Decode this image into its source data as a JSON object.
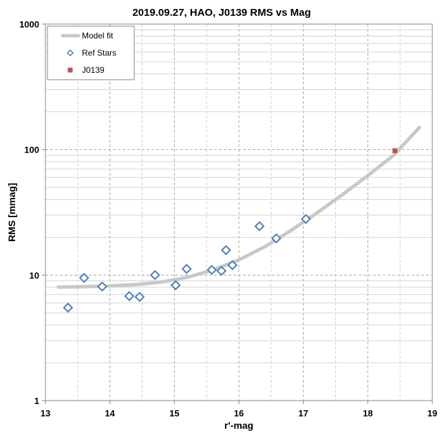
{
  "chart_data": {
    "type": "scatter",
    "title": "2019.09.27, HAO, J0139 RMS vs Mag",
    "xlabel": "r'-mag",
    "ylabel": "RMS [mmag]",
    "xlim": [
      13,
      19
    ],
    "ylim": [
      1,
      1000
    ],
    "yscale": "log",
    "grid": true,
    "legend_position": "top-left",
    "x_ticks": [
      13,
      14,
      15,
      16,
      17,
      18,
      19
    ],
    "y_ticks": [
      1,
      10,
      100,
      1000
    ],
    "x_tick_labels": [
      "13",
      "14",
      "15",
      "16",
      "17",
      "18",
      "19"
    ],
    "y_tick_labels": [
      "1",
      "10",
      "100",
      "1000"
    ],
    "series": [
      {
        "name": "Model fit",
        "kind": "line",
        "color": "#c8c8c8",
        "points": [
          [
            13.2,
            8.0
          ],
          [
            13.6,
            8.1
          ],
          [
            14.0,
            8.2
          ],
          [
            14.4,
            8.4
          ],
          [
            14.8,
            8.8
          ],
          [
            15.2,
            9.6
          ],
          [
            15.6,
            11.0
          ],
          [
            16.0,
            13.2
          ],
          [
            16.4,
            16.8
          ],
          [
            16.8,
            22.5
          ],
          [
            17.2,
            31.0
          ],
          [
            17.6,
            43.5
          ],
          [
            18.0,
            62.0
          ],
          [
            18.4,
            90.0
          ],
          [
            18.8,
            150.0
          ]
        ]
      },
      {
        "name": "Ref Stars",
        "kind": "marker",
        "marker": "diamond",
        "color": "#4a7ebb",
        "points": [
          [
            13.35,
            5.5
          ],
          [
            13.6,
            9.5
          ],
          [
            13.88,
            8.1
          ],
          [
            14.3,
            6.8
          ],
          [
            14.46,
            6.7
          ],
          [
            14.7,
            10.0
          ],
          [
            15.02,
            8.3
          ],
          [
            15.19,
            11.2
          ],
          [
            15.58,
            11.0
          ],
          [
            15.73,
            10.8
          ],
          [
            15.8,
            15.8
          ],
          [
            15.9,
            12.0
          ],
          [
            16.32,
            24.5
          ],
          [
            16.58,
            19.6
          ],
          [
            17.04,
            28.0
          ]
        ]
      },
      {
        "name": "J0139",
        "kind": "marker",
        "marker": "square",
        "color": "#c0504d",
        "points": [
          [
            18.42,
            98.0
          ]
        ]
      }
    ]
  }
}
